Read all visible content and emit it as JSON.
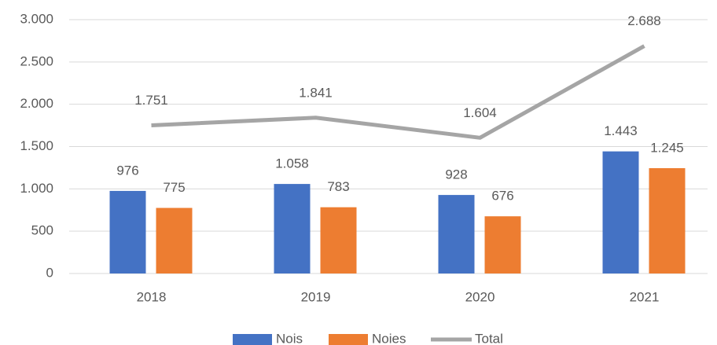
{
  "chart_data": {
    "type": "bar",
    "categories": [
      "2018",
      "2019",
      "2020",
      "2021"
    ],
    "series": [
      {
        "name": "Nois",
        "color": "#4472c4",
        "values": [
          976,
          1058,
          928,
          1443
        ],
        "value_labels": [
          "976",
          "1.058",
          "928",
          "1.443"
        ]
      },
      {
        "name": "Noies",
        "color": "#ed7d31",
        "values": [
          775,
          783,
          676,
          1245
        ],
        "value_labels": [
          "775",
          "783",
          "676",
          "1.245"
        ]
      },
      {
        "name": "Total",
        "type": "line",
        "color": "#a5a5a5",
        "values": [
          1751,
          1841,
          1604,
          2688
        ],
        "value_labels": [
          "1.751",
          "1.841",
          "1.604",
          "2.688"
        ]
      }
    ],
    "ylim": [
      0,
      3000
    ],
    "yticks": [
      0,
      500,
      {
        "value": 1000,
        "label": "1.000"
      },
      {
        "value": 1500,
        "label": "1.500"
      },
      {
        "value": 2000,
        "label": "2.000"
      },
      {
        "value": 2500,
        "label": "2.500"
      },
      {
        "value": 3000,
        "label": "3.000"
      }
    ],
    "grid": true,
    "legend": "bottom"
  }
}
